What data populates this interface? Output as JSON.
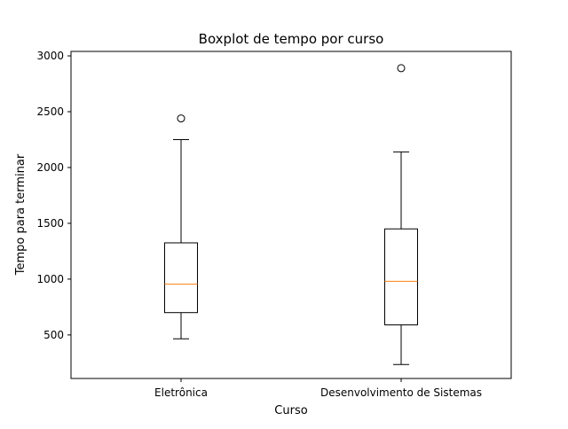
{
  "chart_data": {
    "type": "box",
    "title": "Boxplot de tempo por curso",
    "xlabel": "Curso",
    "ylabel": "Tempo para terminar",
    "categories": [
      "Eletrônica",
      "Desenvolvimento de Sistemas"
    ],
    "ylim": [
      110,
      3040
    ],
    "yticks": [
      500,
      1000,
      1500,
      2000,
      2500,
      3000
    ],
    "ytick_labels": [
      "500",
      "1000",
      "1500",
      "2000",
      "2500",
      "3000"
    ],
    "grid": false,
    "boxes": [
      {
        "category": "Eletrônica",
        "whisker_low": 465,
        "q1": 700,
        "median": 955,
        "q3": 1325,
        "whisker_high": 2250,
        "outliers": [
          2440
        ]
      },
      {
        "category": "Desenvolvimento de Sistemas",
        "whisker_low": 235,
        "q1": 590,
        "median": 980,
        "q3": 1450,
        "whisker_high": 2140,
        "outliers": [
          2890
        ]
      }
    ],
    "colors": {
      "box": "#000000",
      "median": "#ff7f0e",
      "axes": "#000000"
    }
  }
}
